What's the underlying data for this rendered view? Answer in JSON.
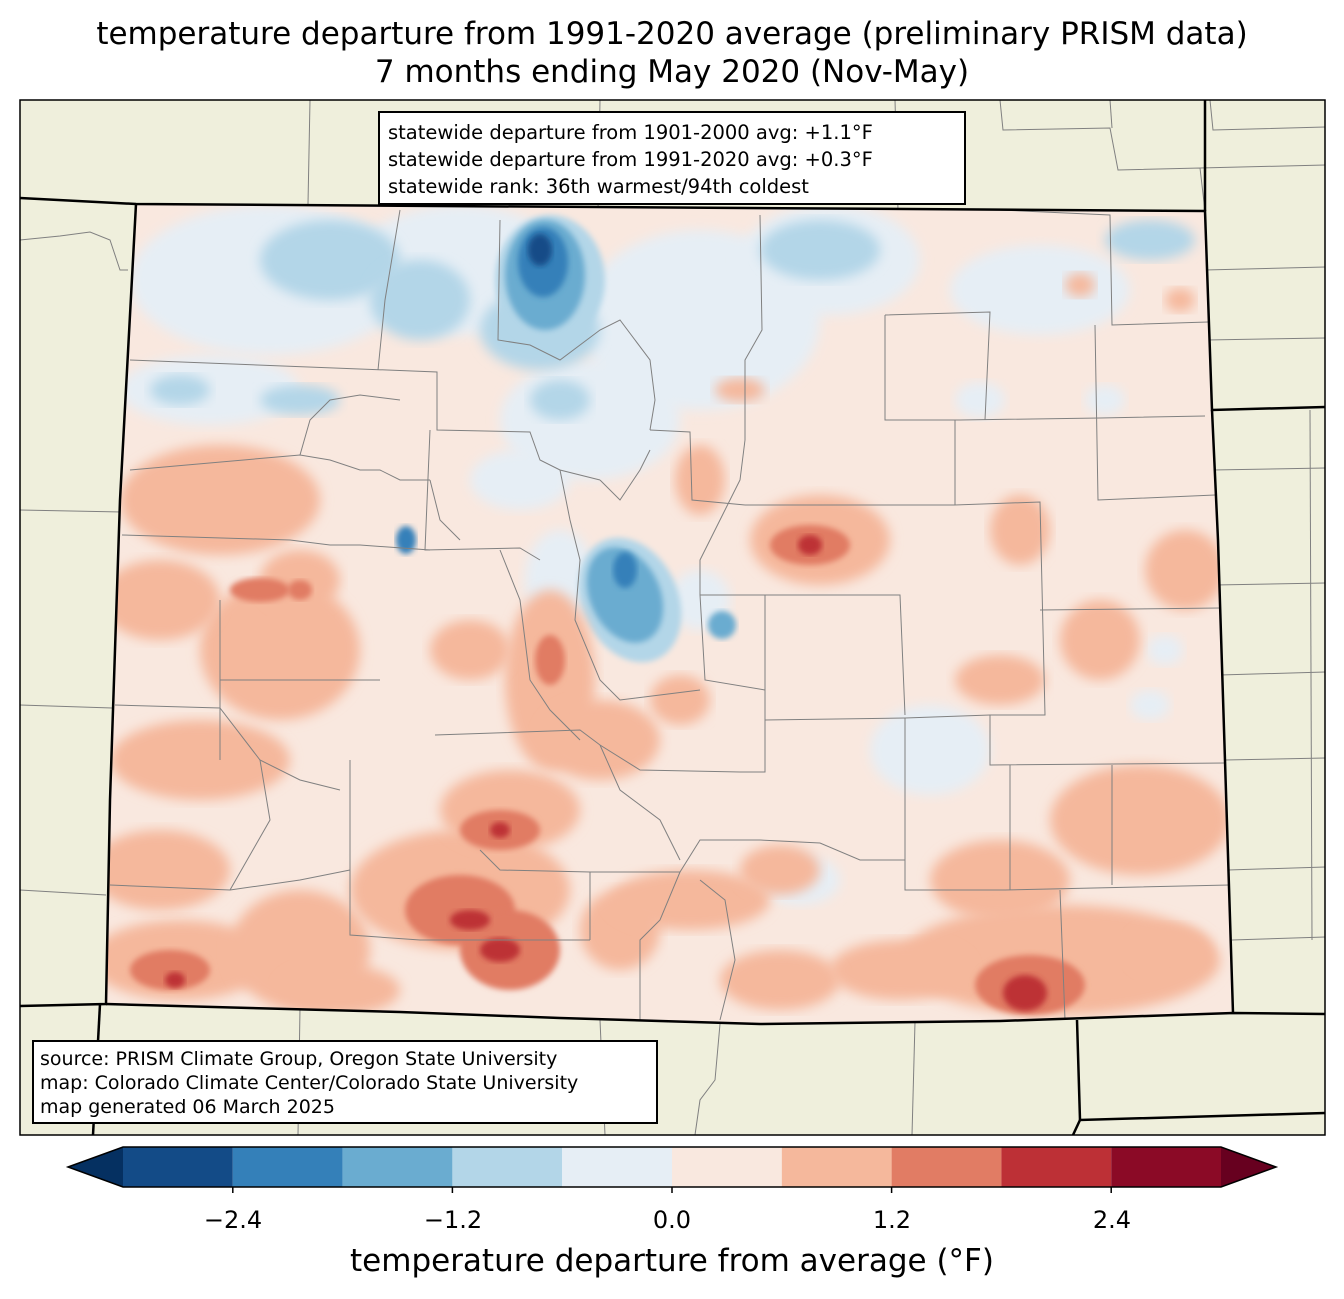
{
  "title": {
    "line1": "temperature departure from 1991-2020 average (preliminary PRISM data)",
    "line2": "7 months ending May 2020 (Nov-May)"
  },
  "stats": {
    "line1": "statewide departure from 1901-2000 avg: +1.1°F",
    "line2": "statewide departure from 1991-2020 avg: +0.3°F",
    "line3": "statewide rank: 36th warmest/94th coldest"
  },
  "source": {
    "line1": "source: PRISM Climate Group, Oregon State University",
    "line2": "map: Colorado Climate Center/Colorado State University",
    "line3": "map generated 06 March 2025"
  },
  "colorbar": {
    "label": "temperature departure from average (°F)",
    "bins": [
      -3.0,
      -2.4,
      -1.8,
      -1.2,
      -0.6,
      0.0,
      0.6,
      1.2,
      1.8,
      2.4,
      3.0
    ],
    "ticks": [
      "−2.4",
      "−1.2",
      "0.0",
      "1.2",
      "2.4"
    ],
    "colors": [
      "#134b87",
      "#3480b9",
      "#6aacd0",
      "#b3d6e8",
      "#e6eef5",
      "#f9e8df",
      "#f5b89c",
      "#e17c64",
      "#bd3036",
      "#8b0a26"
    ],
    "extend_low": "#053061",
    "extend_high": "#67001f"
  },
  "map_colors": {
    "land": "#efefdc",
    "border": "#000000",
    "county": "#808080"
  }
}
